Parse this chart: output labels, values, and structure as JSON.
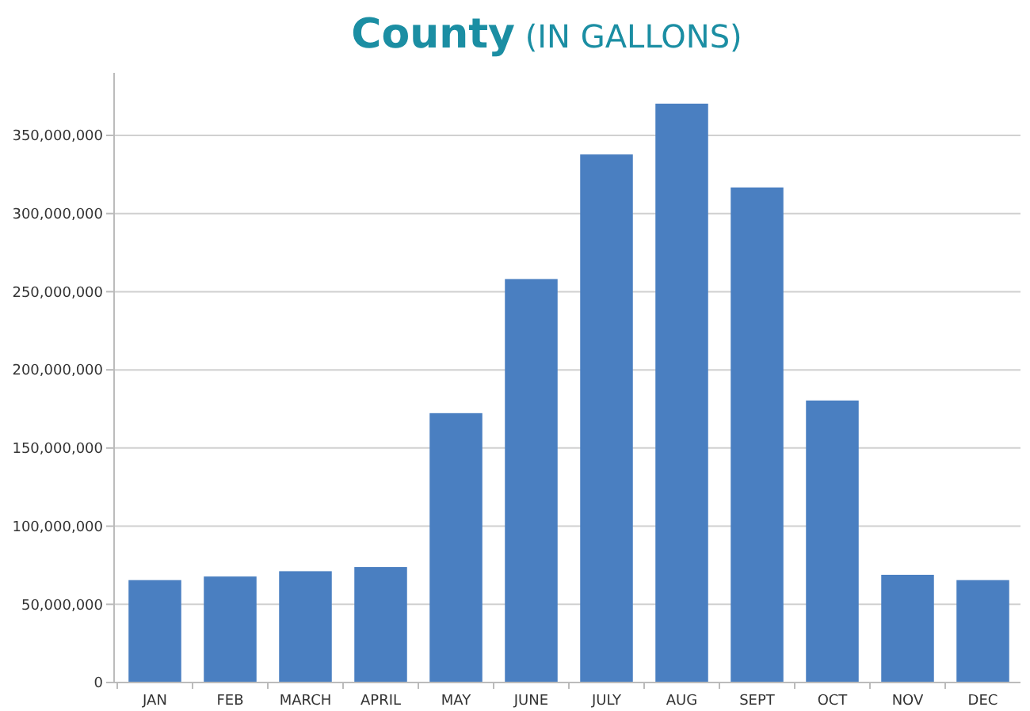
{
  "chart_data": {
    "type": "bar",
    "title": "County (IN GALLONS)",
    "categories": [
      "JAN",
      "FEB",
      "MARCH",
      "APRIL",
      "MAY",
      "JUNE",
      "JULY",
      "AUG",
      "SEPT",
      "OCT",
      "NOV",
      "DEC"
    ],
    "values": [
      65500000,
      67800000,
      71200000,
      73900000,
      172300000,
      258100000,
      337800000,
      370300000,
      316700000,
      180400000,
      68900000,
      65500000
    ],
    "color": "#4a7fc1",
    "ylim": [
      0,
      390000000
    ],
    "yticks": [
      {
        "value": 0,
        "label": "0"
      },
      {
        "value": 50000000,
        "label": "50,000,000"
      },
      {
        "value": 100000000,
        "label": "100,000,000"
      },
      {
        "value": 150000000,
        "label": "150,000,000"
      },
      {
        "value": 200000000,
        "label": "200,000,000"
      },
      {
        "value": 250000000,
        "label": "250,000,000"
      },
      {
        "value": 300000000,
        "label": "300,000,000"
      },
      {
        "value": 350000000,
        "label": "350,000,000"
      }
    ],
    "grid": "y"
  }
}
